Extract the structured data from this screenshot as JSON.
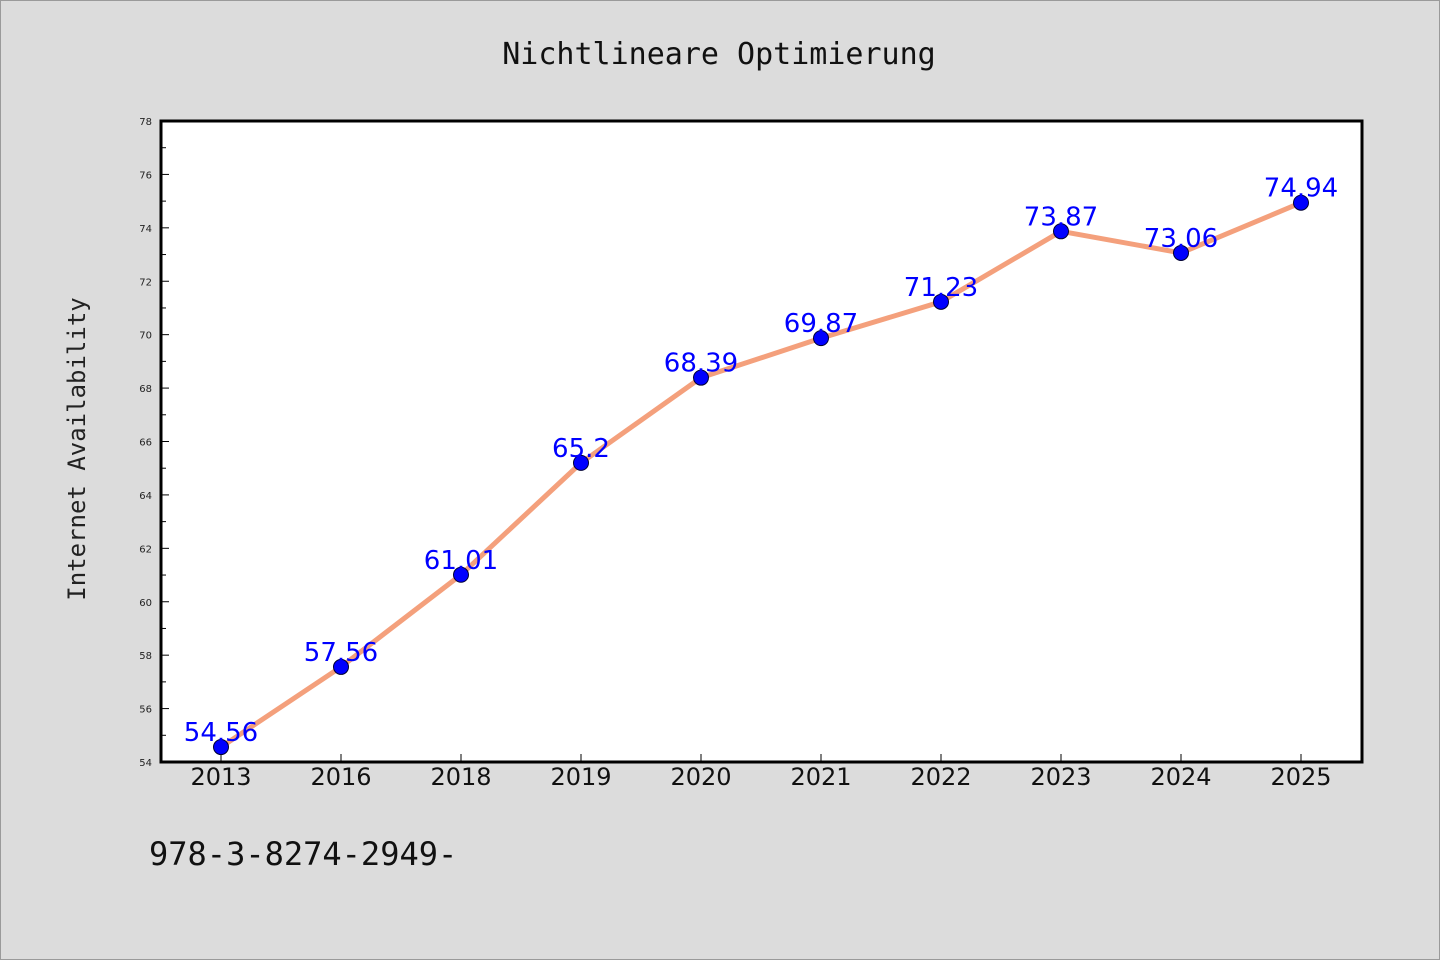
{
  "chart_data": {
    "type": "line",
    "title": "Nichtlineare Optimierung",
    "xlabel": "",
    "ylabel": "Internet Availability",
    "categories": [
      "2013",
      "2016",
      "2018",
      "2019",
      "2020",
      "2021",
      "2022",
      "2023",
      "2024",
      "2025"
    ],
    "series": [
      {
        "values": [
          54.56,
          57.56,
          61.01,
          65.2,
          68.39,
          69.87,
          71.23,
          73.87,
          73.06,
          74.94
        ],
        "data_labels": [
          "54.56",
          "57.56",
          "61.01",
          "65.2",
          "68.39",
          "69.87",
          "71.23",
          "73.87",
          "73.06",
          "74.94"
        ]
      }
    ],
    "ylim": [
      54,
      78
    ],
    "yticks": [
      "54",
      "56",
      "58",
      "60",
      "62",
      "64",
      "66",
      "68",
      "70",
      "72",
      "74",
      "76",
      "78"
    ],
    "grid": false,
    "legend": "none",
    "colors": {
      "line": "#f4a07c",
      "marker": "#0000ff",
      "label": "#0000ff",
      "plot_background": "#ffffff",
      "figure_background": "#dcdcdc"
    }
  },
  "footer": {
    "isbn": "978-3-8274-2949-"
  }
}
